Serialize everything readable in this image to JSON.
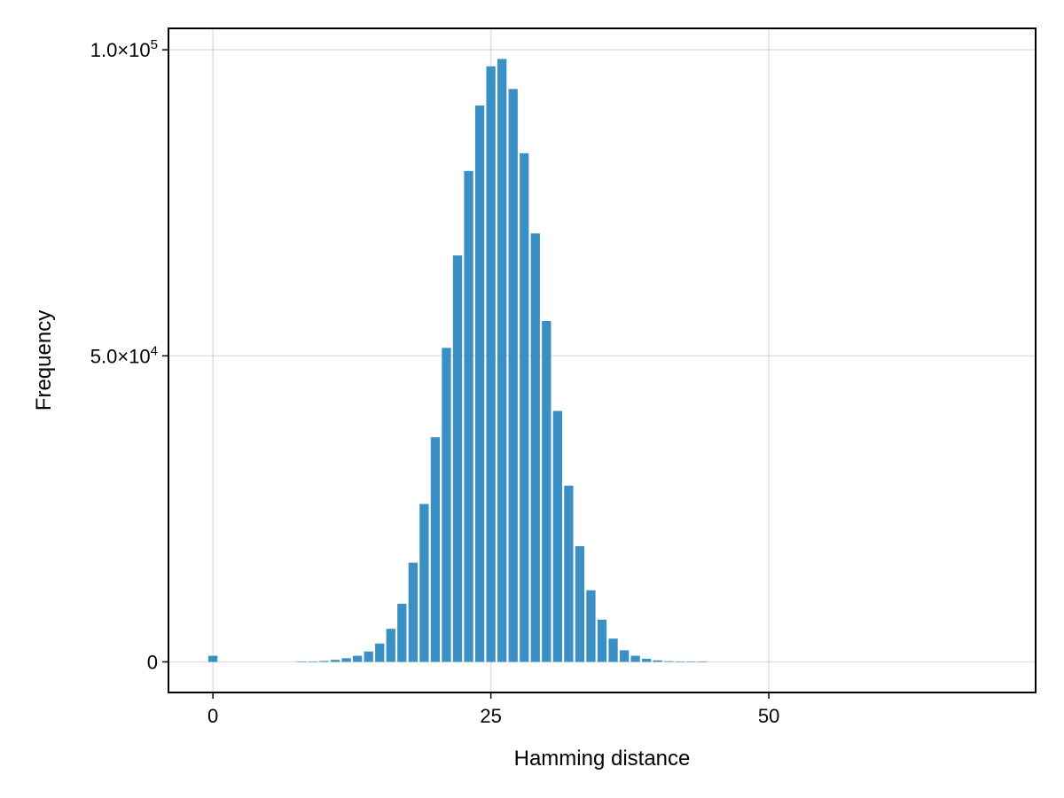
{
  "chart_data": {
    "type": "bar",
    "title": "",
    "xlabel": "Hamming distance",
    "ylabel": "Frequency",
    "xlim": [
      -4,
      74
    ],
    "ylim": [
      -5000,
      103500
    ],
    "grid": true,
    "bar_color": "#3a8fc4",
    "x_ticks": [
      {
        "value": 0,
        "label": "0"
      },
      {
        "value": 25,
        "label": "25"
      },
      {
        "value": 50,
        "label": "50"
      }
    ],
    "y_ticks": [
      {
        "value": 0,
        "label": "0",
        "exponent": ""
      },
      {
        "value": 50000,
        "label": "5.0×10",
        "exponent": "4"
      },
      {
        "value": 100000,
        "label": "1.0×10",
        "exponent": "5"
      }
    ],
    "x": [
      0,
      8,
      9,
      10,
      11,
      12,
      13,
      14,
      15,
      16,
      17,
      18,
      19,
      20,
      21,
      22,
      23,
      24,
      25,
      26,
      27,
      28,
      29,
      30,
      31,
      32,
      33,
      34,
      35,
      36,
      37,
      38,
      39,
      40,
      41,
      42,
      43,
      44
    ],
    "values": [
      1000,
      20,
      60,
      150,
      330,
      600,
      1000,
      1700,
      3000,
      5400,
      9500,
      16200,
      25800,
      36700,
      51300,
      66400,
      80200,
      90900,
      97300,
      98500,
      93600,
      83100,
      70000,
      55700,
      41000,
      28800,
      18900,
      11700,
      6900,
      3800,
      1900,
      1000,
      500,
      250,
      110,
      50,
      20,
      10
    ]
  }
}
